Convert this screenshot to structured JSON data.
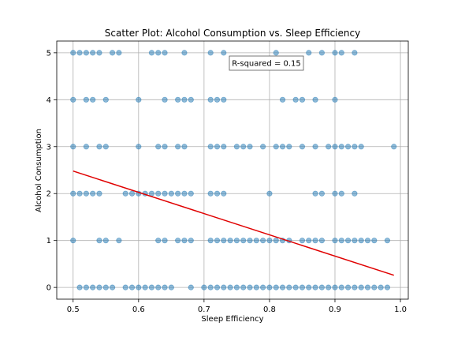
{
  "chart_data": {
    "type": "scatter",
    "title": "Scatter Plot: Alcohol Consumption vs. Sleep Efficiency",
    "xlabel": "Sleep Efficiency",
    "ylabel": "Alcohol Consumption",
    "xlim": [
      0.475,
      1.012
    ],
    "ylim": [
      -0.25,
      5.25
    ],
    "xticks": [
      0.5,
      0.6,
      0.7,
      0.8,
      0.9,
      1.0
    ],
    "xtick_labels": [
      "0.5",
      "0.6",
      "0.7",
      "0.8",
      "0.9",
      "1.0"
    ],
    "yticks": [
      0,
      1,
      2,
      3,
      4,
      5
    ],
    "ytick_labels": [
      "0",
      "1",
      "2",
      "3",
      "4",
      "5"
    ],
    "grid": true,
    "colors": {
      "points": "#1f77b4",
      "fit_line": "#e00000"
    },
    "annotation": "R-squared = 0.15",
    "series": [
      {
        "points": [
          [
            0.5,
            5
          ],
          [
            0.51,
            5
          ],
          [
            0.52,
            5
          ],
          [
            0.53,
            5
          ],
          [
            0.54,
            5
          ],
          [
            0.56,
            5
          ],
          [
            0.57,
            5
          ],
          [
            0.62,
            5
          ],
          [
            0.63,
            5
          ],
          [
            0.64,
            5
          ],
          [
            0.67,
            5
          ],
          [
            0.71,
            5
          ],
          [
            0.73,
            5
          ],
          [
            0.81,
            5
          ],
          [
            0.86,
            5
          ],
          [
            0.88,
            5
          ],
          [
            0.9,
            5
          ],
          [
            0.91,
            5
          ],
          [
            0.93,
            5
          ],
          [
            0.5,
            4
          ],
          [
            0.52,
            4
          ],
          [
            0.53,
            4
          ],
          [
            0.55,
            4
          ],
          [
            0.6,
            4
          ],
          [
            0.64,
            4
          ],
          [
            0.66,
            4
          ],
          [
            0.67,
            4
          ],
          [
            0.68,
            4
          ],
          [
            0.71,
            4
          ],
          [
            0.72,
            4
          ],
          [
            0.73,
            4
          ],
          [
            0.82,
            4
          ],
          [
            0.84,
            4
          ],
          [
            0.85,
            4
          ],
          [
            0.87,
            4
          ],
          [
            0.9,
            4
          ],
          [
            0.5,
            3
          ],
          [
            0.52,
            3
          ],
          [
            0.54,
            3
          ],
          [
            0.55,
            3
          ],
          [
            0.6,
            3
          ],
          [
            0.63,
            3
          ],
          [
            0.64,
            3
          ],
          [
            0.66,
            3
          ],
          [
            0.67,
            3
          ],
          [
            0.71,
            3
          ],
          [
            0.72,
            3
          ],
          [
            0.73,
            3
          ],
          [
            0.75,
            3
          ],
          [
            0.76,
            3
          ],
          [
            0.77,
            3
          ],
          [
            0.79,
            3
          ],
          [
            0.81,
            3
          ],
          [
            0.82,
            3
          ],
          [
            0.83,
            3
          ],
          [
            0.85,
            3
          ],
          [
            0.87,
            3
          ],
          [
            0.89,
            3
          ],
          [
            0.9,
            3
          ],
          [
            0.91,
            3
          ],
          [
            0.92,
            3
          ],
          [
            0.93,
            3
          ],
          [
            0.94,
            3
          ],
          [
            0.99,
            3
          ],
          [
            0.5,
            2
          ],
          [
            0.51,
            2
          ],
          [
            0.52,
            2
          ],
          [
            0.53,
            2
          ],
          [
            0.54,
            2
          ],
          [
            0.58,
            2
          ],
          [
            0.59,
            2
          ],
          [
            0.6,
            2
          ],
          [
            0.61,
            2
          ],
          [
            0.62,
            2
          ],
          [
            0.63,
            2
          ],
          [
            0.64,
            2
          ],
          [
            0.65,
            2
          ],
          [
            0.66,
            2
          ],
          [
            0.67,
            2
          ],
          [
            0.68,
            2
          ],
          [
            0.71,
            2
          ],
          [
            0.72,
            2
          ],
          [
            0.73,
            2
          ],
          [
            0.8,
            2
          ],
          [
            0.87,
            2
          ],
          [
            0.88,
            2
          ],
          [
            0.9,
            2
          ],
          [
            0.91,
            2
          ],
          [
            0.93,
            2
          ],
          [
            0.5,
            1
          ],
          [
            0.54,
            1
          ],
          [
            0.55,
            1
          ],
          [
            0.57,
            1
          ],
          [
            0.63,
            1
          ],
          [
            0.64,
            1
          ],
          [
            0.66,
            1
          ],
          [
            0.67,
            1
          ],
          [
            0.68,
            1
          ],
          [
            0.71,
            1
          ],
          [
            0.72,
            1
          ],
          [
            0.73,
            1
          ],
          [
            0.74,
            1
          ],
          [
            0.75,
            1
          ],
          [
            0.76,
            1
          ],
          [
            0.77,
            1
          ],
          [
            0.78,
            1
          ],
          [
            0.79,
            1
          ],
          [
            0.8,
            1
          ],
          [
            0.81,
            1
          ],
          [
            0.82,
            1
          ],
          [
            0.83,
            1
          ],
          [
            0.85,
            1
          ],
          [
            0.86,
            1
          ],
          [
            0.87,
            1
          ],
          [
            0.88,
            1
          ],
          [
            0.9,
            1
          ],
          [
            0.91,
            1
          ],
          [
            0.92,
            1
          ],
          [
            0.93,
            1
          ],
          [
            0.94,
            1
          ],
          [
            0.95,
            1
          ],
          [
            0.96,
            1
          ],
          [
            0.98,
            1
          ],
          [
            0.51,
            0
          ],
          [
            0.52,
            0
          ],
          [
            0.53,
            0
          ],
          [
            0.54,
            0
          ],
          [
            0.55,
            0
          ],
          [
            0.56,
            0
          ],
          [
            0.58,
            0
          ],
          [
            0.59,
            0
          ],
          [
            0.6,
            0
          ],
          [
            0.61,
            0
          ],
          [
            0.62,
            0
          ],
          [
            0.63,
            0
          ],
          [
            0.64,
            0
          ],
          [
            0.65,
            0
          ],
          [
            0.68,
            0
          ],
          [
            0.7,
            0
          ],
          [
            0.71,
            0
          ],
          [
            0.72,
            0
          ],
          [
            0.73,
            0
          ],
          [
            0.74,
            0
          ],
          [
            0.75,
            0
          ],
          [
            0.76,
            0
          ],
          [
            0.77,
            0
          ],
          [
            0.78,
            0
          ],
          [
            0.79,
            0
          ],
          [
            0.8,
            0
          ],
          [
            0.81,
            0
          ],
          [
            0.82,
            0
          ],
          [
            0.83,
            0
          ],
          [
            0.84,
            0
          ],
          [
            0.85,
            0
          ],
          [
            0.86,
            0
          ],
          [
            0.87,
            0
          ],
          [
            0.88,
            0
          ],
          [
            0.89,
            0
          ],
          [
            0.9,
            0
          ],
          [
            0.91,
            0
          ],
          [
            0.92,
            0
          ],
          [
            0.93,
            0
          ],
          [
            0.94,
            0
          ],
          [
            0.95,
            0
          ],
          [
            0.96,
            0
          ],
          [
            0.97,
            0
          ],
          [
            0.98,
            0
          ]
        ]
      }
    ],
    "fit_line": {
      "x": [
        0.5,
        0.99
      ],
      "y": [
        2.48,
        0.26
      ]
    }
  }
}
